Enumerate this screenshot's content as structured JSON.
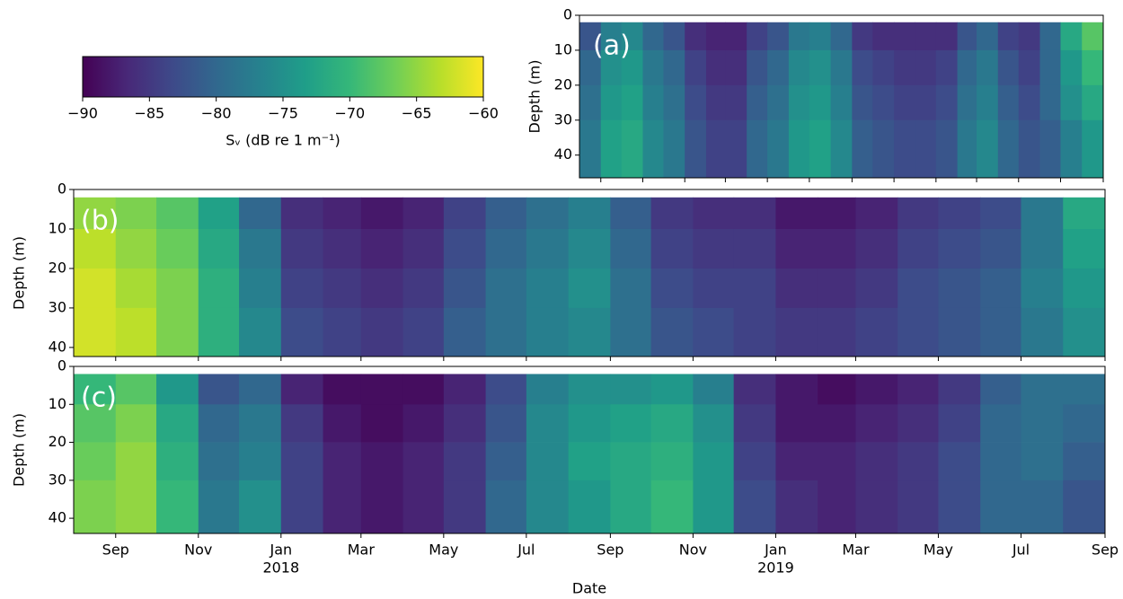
{
  "chart_data": {
    "type": "heatmap",
    "colormap": "viridis",
    "clim": [
      -90,
      -60
    ],
    "colorbar": {
      "label": "Sᵥ (dB re 1 m⁻¹)",
      "ticks": [
        {
          "value": -90,
          "label": "−90"
        },
        {
          "value": -85,
          "label": "−85"
        },
        {
          "value": -80,
          "label": "−80"
        },
        {
          "value": -75,
          "label": "−75"
        },
        {
          "value": -70,
          "label": "−70"
        },
        {
          "value": -65,
          "label": "−65"
        },
        {
          "value": -60,
          "label": "−60"
        }
      ]
    },
    "xlabel": "Date",
    "xlim": [
      "2017-08",
      "2019-09"
    ],
    "x": [
      "2017-08",
      "2017-09",
      "2017-10",
      "2017-11",
      "2017-12",
      "2018-01",
      "2018-02",
      "2018-03",
      "2018-04",
      "2018-05",
      "2018-06",
      "2018-07",
      "2018-08",
      "2018-09",
      "2018-10",
      "2018-11",
      "2018-12",
      "2019-01",
      "2019-02",
      "2019-03",
      "2019-04",
      "2019-05",
      "2019-06",
      "2019-07",
      "2019-08",
      "2019-09"
    ],
    "xticks": [
      {
        "value": "2017-09",
        "label": "Sep"
      },
      {
        "value": "2017-11",
        "label": "Nov"
      },
      {
        "value": "2018-01",
        "label": "Jan"
      },
      {
        "value": "2018-03",
        "label": "Mar"
      },
      {
        "value": "2018-05",
        "label": "May"
      },
      {
        "value": "2018-07",
        "label": "Jul"
      },
      {
        "value": "2018-09",
        "label": "Sep"
      },
      {
        "value": "2018-11",
        "label": "Nov"
      },
      {
        "value": "2019-01",
        "label": "Jan"
      },
      {
        "value": "2019-03",
        "label": "Mar"
      },
      {
        "value": "2019-05",
        "label": "May"
      },
      {
        "value": "2019-07",
        "label": "Jul"
      },
      {
        "value": "2019-09",
        "label": "Sep"
      }
    ],
    "xtick_years": [
      {
        "value": "2018-01",
        "label": "2018"
      },
      {
        "value": "2019-01",
        "label": "2019"
      }
    ],
    "y_inverted": true,
    "panels": [
      {
        "label": "(a)",
        "ylabel": "Depth (m)",
        "ylim": [
          0,
          46.5
        ],
        "yticks": [
          0,
          10,
          20,
          30,
          40
        ],
        "depth_bins": [
          2,
          10,
          20,
          30,
          46.5
        ],
        "values": [
          [
            -82,
            -77,
            -76,
            -80,
            -82,
            -86,
            -87,
            -87,
            -84,
            -82,
            -78,
            -77,
            -80,
            -85,
            -86,
            -86,
            -86,
            -86,
            -82,
            -80,
            -84,
            -85,
            -80,
            -72,
            -68
          ],
          [
            -80,
            -75,
            -74,
            -78,
            -80,
            -84,
            -86,
            -86,
            -82,
            -80,
            -76,
            -75,
            -78,
            -83,
            -84,
            -85,
            -85,
            -84,
            -80,
            -78,
            -82,
            -84,
            -80,
            -74,
            -70
          ],
          [
            -79,
            -74,
            -73,
            -77,
            -79,
            -83,
            -85,
            -85,
            -81,
            -79,
            -75,
            -74,
            -77,
            -82,
            -83,
            -84,
            -84,
            -83,
            -79,
            -77,
            -81,
            -83,
            -80,
            -75,
            -72
          ],
          [
            -78,
            -73,
            -72,
            -76,
            -78,
            -82,
            -84,
            -84,
            -80,
            -78,
            -74,
            -73,
            -76,
            -81,
            -82,
            -83,
            -83,
            -82,
            -78,
            -76,
            -80,
            -82,
            -81,
            -77,
            -74
          ]
        ]
      },
      {
        "label": "(b)",
        "ylabel": "Depth (m)",
        "ylim": [
          0,
          42.3
        ],
        "yticks": [
          0,
          10,
          20,
          30,
          40
        ],
        "depth_bins": [
          2,
          10,
          20,
          30,
          42.3
        ],
        "values": [
          [
            -65,
            -66,
            -68,
            -73,
            -80,
            -86,
            -87,
            -88,
            -87,
            -84,
            -81,
            -79,
            -77,
            -81,
            -85,
            -86,
            -86,
            -88,
            -88,
            -87,
            -85,
            -84,
            -83,
            -78,
            -72
          ],
          [
            -63,
            -65,
            -67,
            -72,
            -78,
            -85,
            -86,
            -87,
            -86,
            -83,
            -80,
            -78,
            -76,
            -80,
            -84,
            -85,
            -85,
            -87,
            -87,
            -86,
            -84,
            -83,
            -82,
            -78,
            -73
          ],
          [
            -62,
            -64,
            -66,
            -71,
            -77,
            -84,
            -85,
            -86,
            -85,
            -82,
            -79,
            -77,
            -75,
            -79,
            -83,
            -84,
            -84,
            -86,
            -86,
            -85,
            -83,
            -82,
            -81,
            -77,
            -74
          ],
          [
            -62,
            -63,
            -66,
            -71,
            -76,
            -83,
            -84,
            -85,
            -84,
            -81,
            -79,
            -77,
            -76,
            -79,
            -82,
            -83,
            -84,
            -85,
            -85,
            -84,
            -83,
            -82,
            -81,
            -78,
            -75
          ]
        ]
      },
      {
        "label": "(c)",
        "ylabel": "Depth (m)",
        "ylim": [
          0,
          44
        ],
        "yticks": [
          0,
          10,
          20,
          30,
          40
        ],
        "depth_bins": [
          2,
          10,
          20,
          30,
          44
        ],
        "values": [
          [
            -70,
            -68,
            -74,
            -82,
            -80,
            -87,
            -89,
            -89,
            -89,
            -87,
            -83,
            -77,
            -75,
            -75,
            -74,
            -77,
            -86,
            -88,
            -89,
            -88,
            -87,
            -85,
            -81,
            -79,
            -79
          ],
          [
            -68,
            -66,
            -72,
            -80,
            -78,
            -85,
            -88,
            -89,
            -88,
            -86,
            -82,
            -76,
            -74,
            -73,
            -72,
            -75,
            -85,
            -88,
            -88,
            -87,
            -86,
            -84,
            -80,
            -79,
            -80
          ],
          [
            -67,
            -65,
            -71,
            -79,
            -77,
            -84,
            -87,
            -88,
            -87,
            -85,
            -81,
            -76,
            -73,
            -72,
            -71,
            -74,
            -84,
            -87,
            -87,
            -86,
            -85,
            -83,
            -80,
            -79,
            -81
          ],
          [
            -66,
            -65,
            -70,
            -78,
            -75,
            -84,
            -87,
            -88,
            -87,
            -85,
            -80,
            -76,
            -74,
            -72,
            -70,
            -74,
            -83,
            -86,
            -87,
            -86,
            -85,
            -83,
            -80,
            -80,
            -82
          ]
        ]
      }
    ]
  }
}
